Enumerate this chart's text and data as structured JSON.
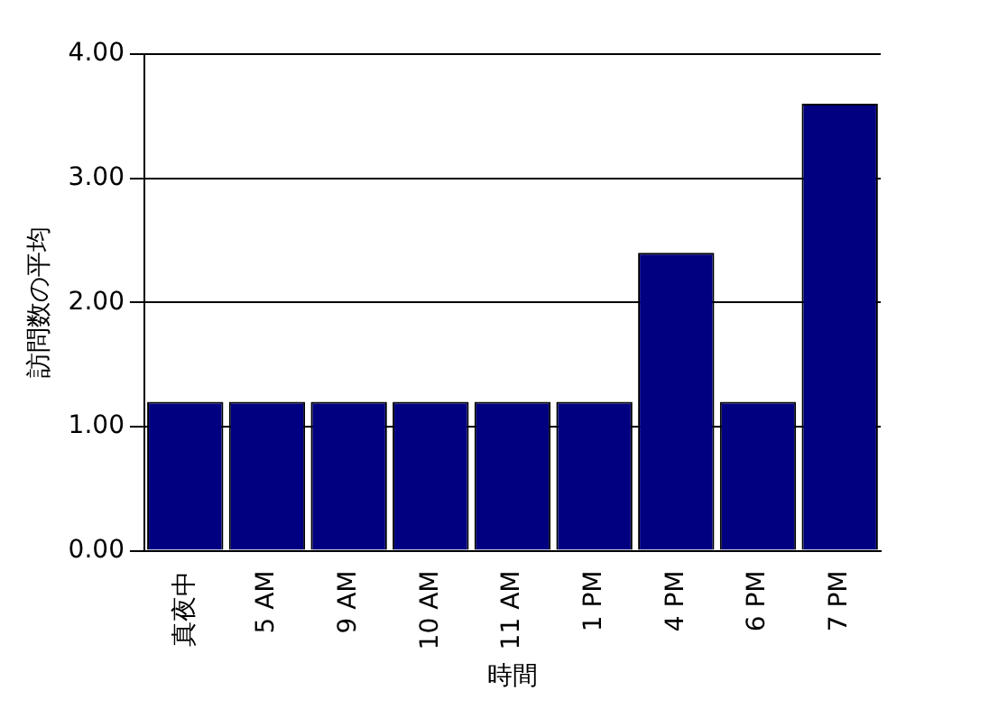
{
  "chart_data": {
    "type": "bar",
    "xlabel": "時間",
    "ylabel": "訪問数の平均",
    "categories": [
      "真夜中",
      "5 AM",
      "9 AM",
      "10 AM",
      "11 AM",
      "1 PM",
      "4 PM",
      "6 PM",
      "7 PM"
    ],
    "values": [
      1.2,
      1.2,
      1.2,
      1.2,
      1.2,
      1.2,
      2.4,
      1.2,
      3.6
    ],
    "color": "#000080",
    "ylim": [
      0,
      4
    ],
    "yticks": [
      {
        "value": 0,
        "label": "0.00"
      },
      {
        "value": 1,
        "label": "1.00"
      },
      {
        "value": 2,
        "label": "2.00"
      },
      {
        "value": 3,
        "label": "3.00"
      },
      {
        "value": 4,
        "label": "4.00"
      }
    ],
    "grid": "y",
    "legend": false
  }
}
